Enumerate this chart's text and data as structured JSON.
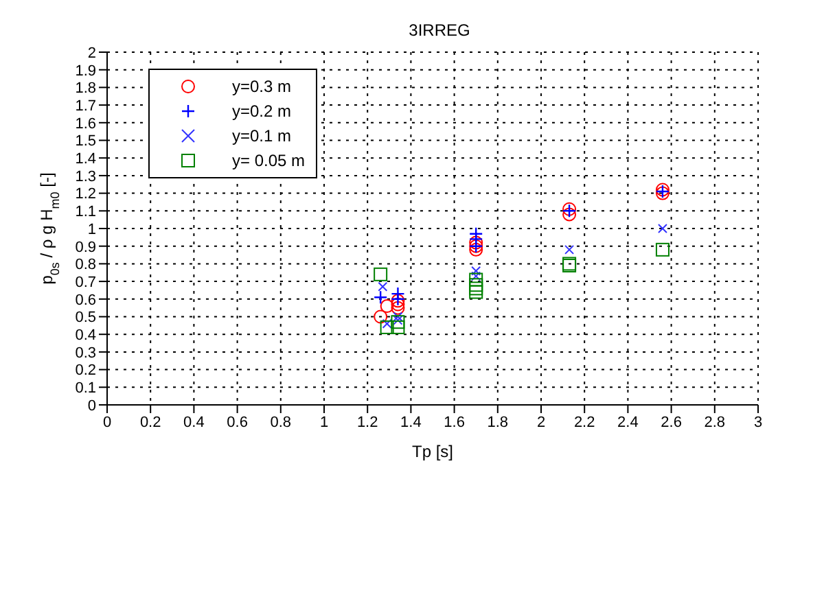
{
  "chart_data": {
    "type": "scatter",
    "title": "3IRREG",
    "xlabel": "Tp [s]",
    "ylabel": "p$_{0s}$ / ρ g H$_{m0}$ [-]",
    "xlim": [
      0,
      3
    ],
    "xticks": [
      0,
      0.2,
      0.4,
      0.6,
      0.8,
      1,
      1.2,
      1.4,
      1.6,
      1.8,
      2,
      2.2,
      2.4,
      2.6,
      2.8,
      3
    ],
    "ylim": [
      0,
      2
    ],
    "yticks": [
      0,
      0.1,
      0.2,
      0.3,
      0.4,
      0.5,
      0.6,
      0.7,
      0.8,
      0.9,
      1,
      1.1,
      1.2,
      1.3,
      1.4,
      1.5,
      1.6,
      1.7,
      1.8,
      1.9,
      2
    ],
    "grid": true,
    "legend": "top left",
    "series": [
      {
        "name": "y=0.3 m",
        "color": "#ff0000",
        "marker": "circle",
        "x": [
          1.26,
          1.29,
          1.34,
          1.34,
          1.34,
          1.7,
          1.7,
          1.7,
          2.13,
          2.13,
          2.56,
          2.56
        ],
        "values": [
          0.5,
          0.56,
          0.55,
          0.57,
          0.59,
          0.88,
          0.9,
          0.92,
          1.08,
          1.11,
          1.2,
          1.22
        ]
      },
      {
        "name": "y=0.2 m",
        "color": "#0000ff",
        "marker": "cross",
        "x": [
          1.26,
          1.34,
          1.34,
          1.7,
          1.7,
          1.7,
          2.13,
          2.56
        ],
        "values": [
          0.61,
          0.6,
          0.63,
          0.9,
          0.94,
          0.97,
          1.1,
          1.21
        ]
      },
      {
        "name": "y=0.1 m",
        "color": "#3333ff",
        "marker": "cross",
        "x": [
          1.27,
          1.29,
          1.34,
          1.34,
          1.7,
          1.7,
          2.13,
          2.56
        ],
        "values": [
          0.67,
          0.46,
          0.48,
          0.5,
          0.73,
          0.76,
          0.88,
          1.0
        ]
      },
      {
        "name": "y= 0.05 m",
        "color": "#008000",
        "marker": "square",
        "x": [
          1.26,
          1.29,
          1.34,
          1.34,
          1.7,
          1.7,
          1.7,
          1.7,
          2.13,
          2.13,
          2.56
        ],
        "values": [
          0.74,
          0.44,
          0.44,
          0.47,
          0.64,
          0.66,
          0.68,
          0.71,
          0.79,
          0.8,
          0.88
        ]
      }
    ]
  }
}
